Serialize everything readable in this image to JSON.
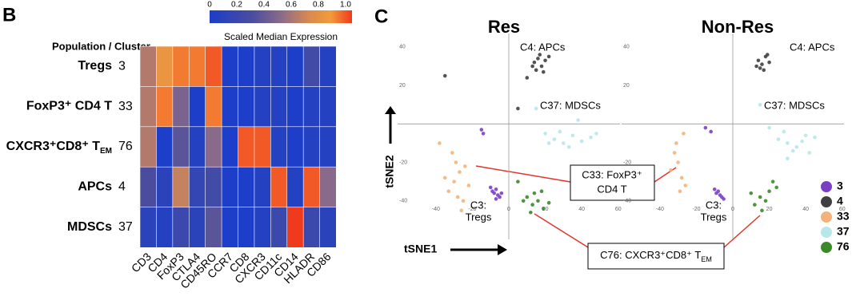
{
  "panel_labels": [
    "B",
    "C"
  ],
  "callouts": [
    {
      "lines": [
        "C33: FoxP3⁺",
        "CD4 T"
      ]
    },
    {
      "text": "C76: CXCR3⁺CD8⁺ T",
      "sub": "EM"
    }
  ],
  "chart_data": [
    {
      "type": "heatmap",
      "row_header": "Population / Cluster",
      "colorbar_label": "Scaled Median Expression",
      "colorbar_lim": [
        0,
        1
      ],
      "colorbar_ticks": [
        0,
        0.2,
        0.4,
        0.6,
        0.8,
        {
          "value": 1,
          "label": "1.0"
        }
      ],
      "rows": [
        {
          "text": "Tregs"
        },
        {
          "text": "FoxP3⁺ CD4 T"
        },
        {
          "text": "CXCR3⁺CD8⁺ T",
          "sub": "EM"
        },
        {
          "text": "APCs"
        },
        {
          "text": "MDSCs"
        }
      ],
      "row_clusters": [
        "3",
        "33",
        "76",
        "4",
        "37"
      ],
      "columns": [
        "CD3",
        "CD4",
        "FoxP3",
        "CTLA4",
        "CD45RO",
        "CCR7",
        "CD8",
        "CXCR3",
        "CD11c",
        "CD14",
        "HLADR",
        "CD86"
      ],
      "values": [
        [
          0.6,
          0.8,
          0.9,
          0.9,
          0.95,
          0,
          0,
          0.05,
          0.05,
          0,
          0.25,
          0.05
        ],
        [
          0.6,
          0.9,
          0.45,
          0,
          0.9,
          0,
          0,
          0.05,
          0.05,
          0,
          0.05,
          0.05
        ],
        [
          0.6,
          0,
          0.35,
          0.05,
          0.5,
          0,
          0.95,
          0.95,
          0.05,
          0,
          0.05,
          0.05
        ],
        [
          0.3,
          0.1,
          0.65,
          0.15,
          0.25,
          0,
          0,
          0.05,
          0.95,
          0.05,
          0.95,
          0.5
        ],
        [
          0.1,
          0.05,
          0.2,
          0.1,
          0.35,
          0,
          0,
          0.05,
          0.2,
          1,
          0.2,
          0.1
        ]
      ]
    },
    {
      "type": "scatter",
      "title": "Res",
      "x_label": "tSNE1",
      "y_label": "tSNE2",
      "xlim": [
        -61,
        61
      ],
      "ylim": [
        -60,
        47
      ],
      "xticks": [
        -40,
        -20,
        0,
        20,
        40,
        60
      ],
      "yticks": [
        -40,
        -20,
        20,
        40
      ],
      "annotations": [
        {
          "lines": [
            "C4: APCs"
          ]
        },
        {
          "lines": [
            "C37: MDSCs"
          ]
        },
        {
          "lines": [
            "C3:",
            "Tregs"
          ]
        }
      ],
      "series": [
        {
          "color": "#7b3fc4",
          "x": [
            -8,
            -6,
            -9,
            -5,
            -7,
            -4,
            -15,
            -14,
            -10,
            -7
          ],
          "y": [
            -36,
            -37,
            -35,
            -38,
            -34,
            -36,
            -3,
            -5,
            -33,
            -39
          ]
        },
        {
          "color": "#404040",
          "x": [
            14,
            16,
            18,
            20,
            15,
            17,
            19,
            13,
            22,
            10,
            -35,
            5
          ],
          "y": [
            32,
            34,
            30,
            33,
            28,
            36,
            27,
            30,
            35,
            24,
            25,
            8
          ]
        },
        {
          "color": "#f3b27a",
          "x": [
            -30,
            -27,
            -33,
            -25,
            -29,
            -35,
            -22,
            -31,
            -26,
            -38,
            -28,
            -24
          ],
          "y": [
            -30,
            -25,
            -35,
            -40,
            -20,
            -28,
            -32,
            -15,
            -45,
            -10,
            -38,
            -22
          ]
        },
        {
          "color": "#b8e6ea",
          "x": [
            20,
            25,
            30,
            35,
            40,
            45,
            28,
            33,
            22,
            38,
            48,
            15
          ],
          "y": [
            -5,
            -8,
            -10,
            -6,
            -9,
            -7,
            -4,
            -12,
            -10,
            2,
            -5,
            8
          ]
        },
        {
          "color": "#3a8a2a",
          "x": [
            10,
            13,
            16,
            19,
            14,
            8,
            18,
            12,
            22,
            5
          ],
          "y": [
            -38,
            -42,
            -40,
            -44,
            -36,
            -40,
            -35,
            -46,
            -41,
            -30
          ]
        }
      ]
    },
    {
      "type": "scatter",
      "title": "Non-Res",
      "xlim": [
        -61,
        61
      ],
      "ylim": [
        -60,
        47
      ],
      "xticks": [
        -40,
        -20,
        0,
        20,
        40,
        60
      ],
      "yticks": [
        -40,
        -20,
        20,
        40
      ],
      "annotations": [
        {
          "lines": [
            "C4: APCs"
          ]
        },
        {
          "lines": [
            "C37: MDSCs"
          ]
        },
        {
          "lines": [
            "C3:",
            "Tregs"
          ]
        }
      ],
      "series": [
        {
          "name": "3",
          "color": "#7b3fc4",
          "x": [
            -8,
            -7,
            -9,
            -6,
            -10,
            -15,
            -12,
            -5
          ],
          "y": [
            -35,
            -37,
            -36,
            -38,
            -34,
            -2,
            -4,
            -39
          ]
        },
        {
          "name": "4",
          "color": "#404040",
          "x": [
            14,
            16,
            18,
            15,
            20,
            17,
            13,
            19
          ],
          "y": [
            33,
            31,
            35,
            29,
            32,
            28,
            30,
            36
          ]
        },
        {
          "name": "33",
          "color": "#f3b27a",
          "x": [
            -30,
            -28,
            -32,
            -26,
            -34,
            -29,
            -31,
            -27
          ],
          "y": [
            -20,
            -28,
            -15,
            -32,
            -24,
            -35,
            -10,
            -5
          ]
        },
        {
          "name": "37",
          "color": "#b8e6ea",
          "x": [
            25,
            30,
            35,
            40,
            28,
            33,
            38,
            45,
            20,
            15,
            42,
            30
          ],
          "y": [
            -8,
            -10,
            -12,
            -6,
            -4,
            -14,
            -9,
            -7,
            -2,
            10,
            -15,
            -18
          ]
        },
        {
          "name": "76",
          "color": "#3a8a2a",
          "x": [
            15,
            18,
            20,
            12,
            22,
            16,
            10,
            24
          ],
          "y": [
            -38,
            -40,
            -35,
            -42,
            -30,
            -45,
            -36,
            -33
          ]
        }
      ]
    }
  ]
}
